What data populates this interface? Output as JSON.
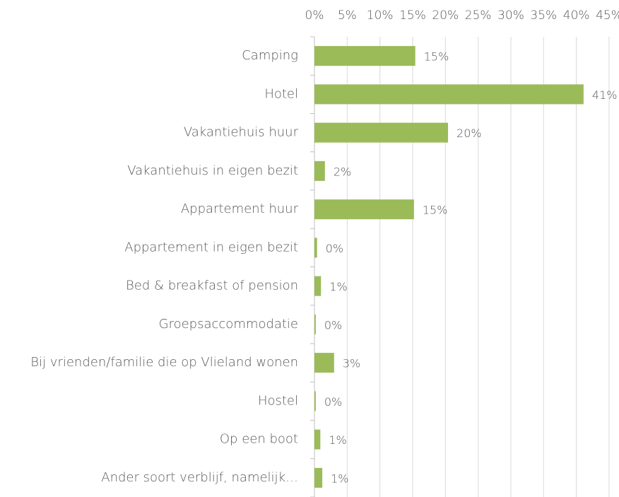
{
  "chart_data": {
    "type": "bar",
    "orientation": "horizontal",
    "color": "#9bbb59",
    "grid": true,
    "categories": [
      "Camping",
      "Hotel",
      "Vakantiehuis huur",
      "Vakantiehuis in eigen bezit",
      "Appartement huur",
      "Appartement in eigen bezit",
      "Bed & breakfast of pension",
      "Groepsaccommodatie",
      "Bij vrienden/familie die op Vlieland wonen",
      "Hostel",
      "Op een boot",
      "Ander soort verblijf, namelijk…"
    ],
    "values": [
      15.4,
      41.1,
      20.4,
      1.6,
      15.2,
      0.4,
      1.0,
      0.2,
      3.0,
      0.2,
      0.9,
      1.2
    ],
    "value_labels": [
      "15%",
      "41%",
      "20%",
      "2%",
      "15%",
      "0%",
      "1%",
      "0%",
      "3%",
      "0%",
      "1%",
      "1%"
    ],
    "xlim": [
      0,
      45
    ],
    "xticks": [
      {
        "value": 0,
        "label": "0%"
      },
      {
        "value": 5,
        "label": "5%"
      },
      {
        "value": 10,
        "label": "10%"
      },
      {
        "value": 15,
        "label": "15%"
      },
      {
        "value": 20,
        "label": "20%"
      },
      {
        "value": 25,
        "label": "25%"
      },
      {
        "value": 30,
        "label": "30%"
      },
      {
        "value": 35,
        "label": "35%"
      },
      {
        "value": 40,
        "label": "40%"
      },
      {
        "value": 45,
        "label": "45%"
      }
    ]
  }
}
